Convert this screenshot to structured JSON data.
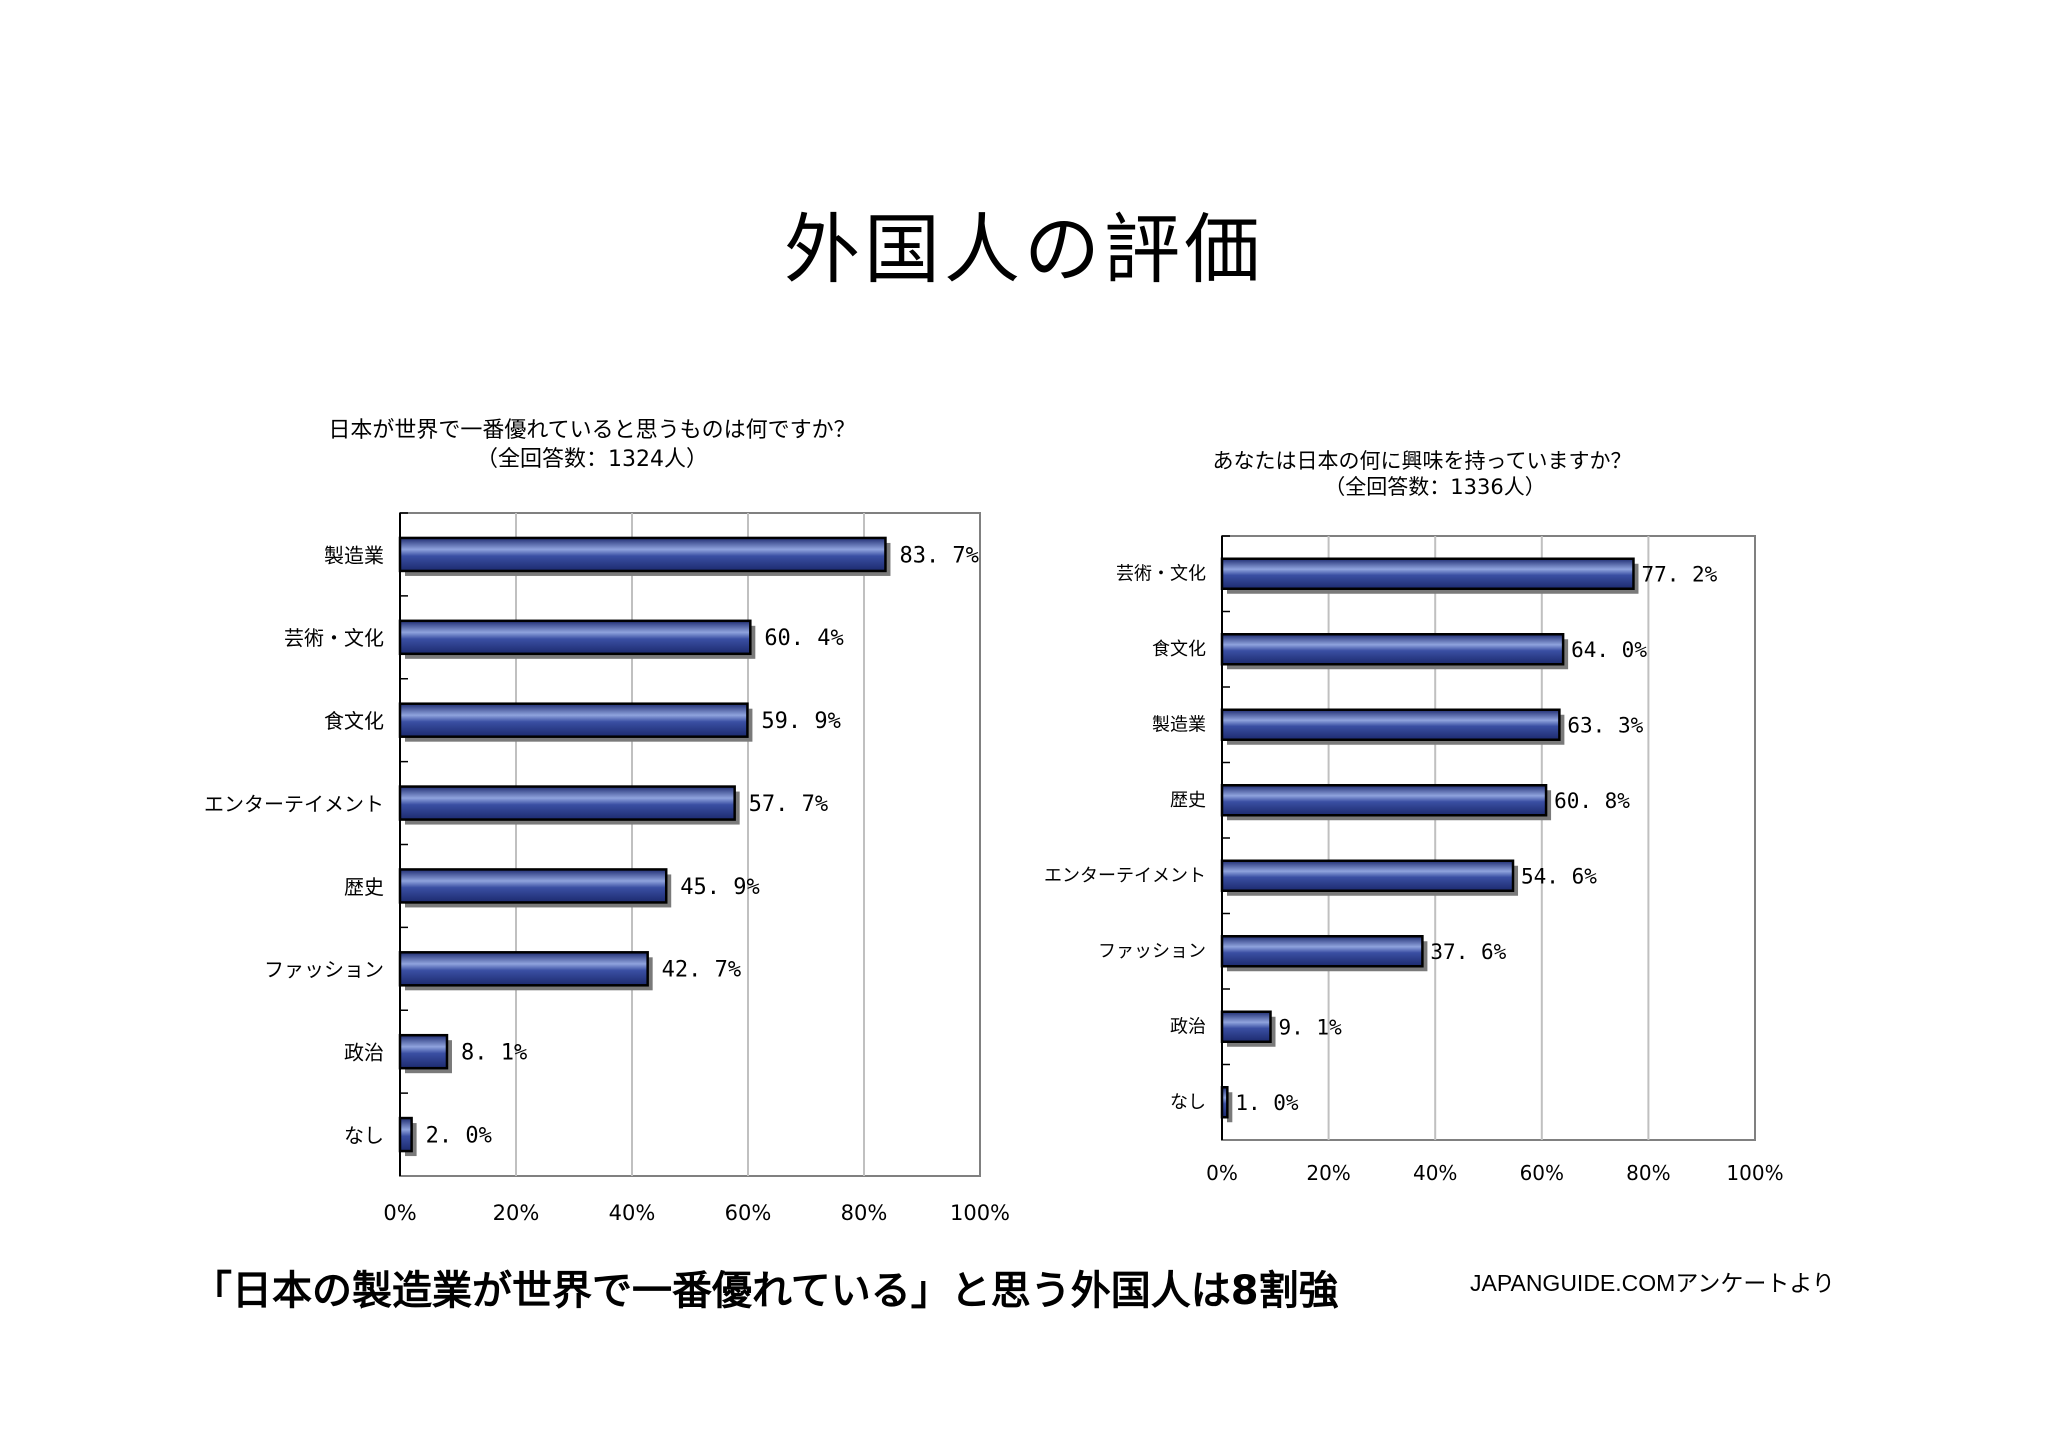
{
  "page": {
    "title": "外国人の評価",
    "caption": "「日本の製造業が世界で一番優れている」と思う外国人は8割強",
    "source": "JAPANGUIDE.COMアンケートより"
  },
  "chart_data": [
    {
      "type": "bar",
      "orientation": "horizontal",
      "title": "日本が世界で一番優れていると思うものは何ですか？",
      "subtitle": "（全回答数：1324人）",
      "categories": [
        "製造業",
        "芸術・文化",
        "食文化",
        "エンターテイメント",
        "歴史",
        "ファッション",
        "政治",
        "なし"
      ],
      "values": [
        83.7,
        60.4,
        59.9,
        57.7,
        45.9,
        42.7,
        8.1,
        2.0
      ],
      "value_labels": [
        "83. 7%",
        "60. 4%",
        "59. 9%",
        "57. 7%",
        "45. 9%",
        "42. 7%",
        "8. 1%",
        "2. 0%"
      ],
      "xlim": [
        0,
        100
      ],
      "x_ticks": [
        "0%",
        "20%",
        "40%",
        "60%",
        "80%",
        "100%"
      ],
      "grid": true,
      "bar_color": "#3A4FA3"
    },
    {
      "type": "bar",
      "orientation": "horizontal",
      "title": "あなたは日本の何に興味を持っていますか？",
      "subtitle": "（全回答数：1336人）",
      "categories": [
        "芸術・文化",
        "食文化",
        "製造業",
        "歴史",
        "エンターテイメント",
        "ファッション",
        "政治",
        "なし"
      ],
      "values": [
        77.2,
        64.0,
        63.3,
        60.8,
        54.6,
        37.6,
        9.1,
        1.0
      ],
      "value_labels": [
        "77. 2%",
        "64. 0%",
        "63. 3%",
        "60. 8%",
        "54. 6%",
        "37. 6%",
        "9. 1%",
        "1. 0%"
      ],
      "xlim": [
        0,
        100
      ],
      "x_ticks": [
        "0%",
        "20%",
        "40%",
        "60%",
        "80%",
        "100%"
      ],
      "grid": true,
      "bar_color": "#3A4FA3"
    }
  ]
}
